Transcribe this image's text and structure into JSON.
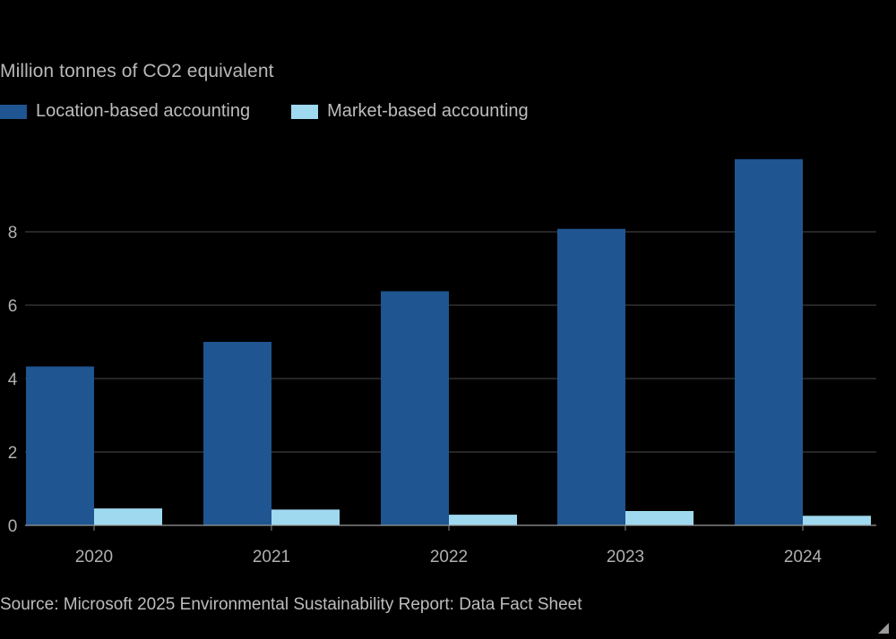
{
  "chart_data": {
    "type": "bar",
    "title": "",
    "subtitle": "Million tonnes of CO2 equivalent",
    "xlabel": "",
    "ylabel": "",
    "categories": [
      "2020",
      "2021",
      "2022",
      "2023",
      "2024"
    ],
    "series": [
      {
        "name": "Location-based accounting",
        "color": "#1f5590",
        "values": [
          4.33,
          5.0,
          6.38,
          8.08,
          9.98
        ]
      },
      {
        "name": "Market-based accounting",
        "color": "#9fd9f0",
        "values": [
          0.46,
          0.43,
          0.29,
          0.39,
          0.26
        ]
      }
    ],
    "y_ticks": [
      "0",
      "2",
      "4",
      "6",
      "8"
    ],
    "ylim": [
      0,
      10.4
    ],
    "grid": true,
    "legend_position": "top-left",
    "source": "Source: Microsoft 2025 Environmental Sustainability Report: Data Fact Sheet"
  }
}
